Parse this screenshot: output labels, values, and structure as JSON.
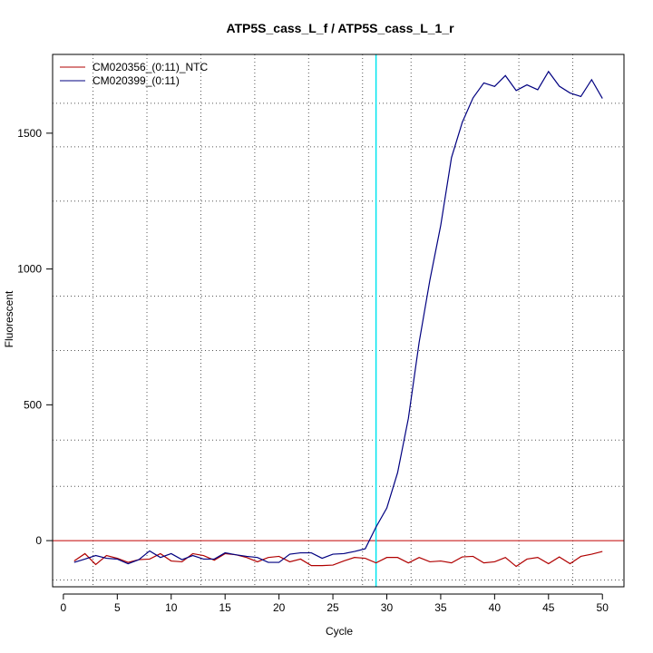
{
  "chart_data": {
    "type": "line",
    "title": "ATP5S_cass_L_f / ATP5S_cass_L_1_r",
    "xlabel": "Cycle",
    "ylabel": "Fluorescent",
    "xlim": [
      -1,
      52
    ],
    "ylim": [
      -170,
      1790
    ],
    "xticks": [
      0,
      5,
      10,
      15,
      20,
      25,
      30,
      35,
      40,
      45,
      50
    ],
    "yticks": [
      0,
      500,
      1000,
      1500
    ],
    "grid": true,
    "grid_x": [
      2.75,
      7.75,
      12.75,
      17.75,
      22.75,
      27.75,
      32.25,
      37.25,
      42.25,
      47.25
    ],
    "grid_y": [
      -145,
      200,
      370,
      700,
      900,
      1250,
      1450,
      1610
    ],
    "threshold_y": 0,
    "threshold_color": "#c00000",
    "cycle_marker_x": 29,
    "cycle_marker_color": "#00e5ee",
    "legend_position": "top-left",
    "x": [
      1,
      2,
      3,
      4,
      5,
      6,
      7,
      8,
      9,
      10,
      11,
      12,
      13,
      14,
      15,
      16,
      17,
      18,
      19,
      20,
      21,
      22,
      23,
      24,
      25,
      26,
      27,
      28,
      29,
      30,
      31,
      32,
      33,
      34,
      35,
      36,
      37,
      38,
      39,
      40,
      41,
      42,
      43,
      44,
      45,
      46,
      47,
      48,
      49,
      50
    ],
    "series": [
      {
        "name": "CM020356_(0:11)_NTC",
        "color": "#b00000",
        "values": [
          -75,
          -48,
          -88,
          -55,
          -65,
          -80,
          -70,
          -68,
          -48,
          -75,
          -78,
          -48,
          -55,
          -72,
          -48,
          -52,
          -62,
          -78,
          -62,
          -58,
          -78,
          -68,
          -92,
          -92,
          -90,
          -75,
          -62,
          -65,
          -82,
          -62,
          -62,
          -82,
          -62,
          -78,
          -75,
          -82,
          -60,
          -58,
          -82,
          -78,
          -62,
          -95,
          -68,
          -62,
          -85,
          -60,
          -85,
          -58,
          -50,
          -40
        ]
      },
      {
        "name": "CM020399_(0:11)",
        "color": "#000080",
        "values": [
          -80,
          -68,
          -55,
          -65,
          -68,
          -85,
          -70,
          -38,
          -62,
          -48,
          -70,
          -55,
          -68,
          -68,
          -45,
          -52,
          -58,
          -62,
          -80,
          -80,
          -50,
          -45,
          -45,
          -65,
          -50,
          -48,
          -40,
          -30,
          50,
          120,
          250,
          450,
          730,
          960,
          1160,
          1410,
          1540,
          1630,
          1685,
          1672,
          1712,
          1657,
          1678,
          1660,
          1727,
          1673,
          1648,
          1635,
          1697,
          1628
        ]
      }
    ]
  }
}
